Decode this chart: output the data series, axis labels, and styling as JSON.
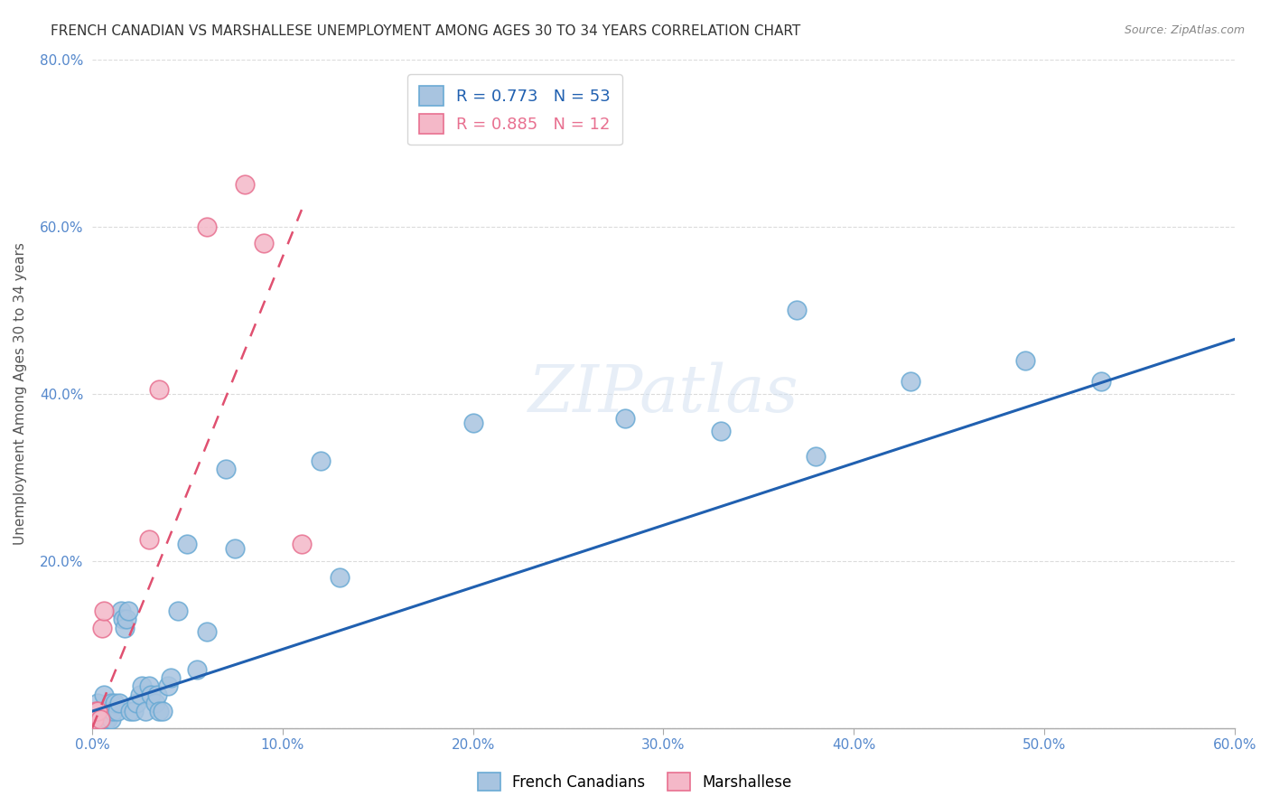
{
  "title": "FRENCH CANADIAN VS MARSHALLESE UNEMPLOYMENT AMONG AGES 30 TO 34 YEARS CORRELATION CHART",
  "source": "Source: ZipAtlas.com",
  "ylabel": "Unemployment Among Ages 30 to 34 years",
  "xlim": [
    0.0,
    0.6
  ],
  "ylim": [
    0.0,
    0.8
  ],
  "xticks": [
    0.0,
    0.1,
    0.2,
    0.3,
    0.4,
    0.5,
    0.6
  ],
  "yticks": [
    0.0,
    0.2,
    0.4,
    0.6,
    0.8
  ],
  "xticklabels": [
    "0.0%",
    "10.0%",
    "20.0%",
    "30.0%",
    "40.0%",
    "50.0%",
    "60.0%"
  ],
  "yticklabels": [
    "",
    "20.0%",
    "40.0%",
    "60.0%",
    "80.0%"
  ],
  "fc_color": "#a8c4e0",
  "fc_edge_color": "#6aaad4",
  "marsh_color": "#f4b8c8",
  "marsh_edge_color": "#e87090",
  "trendline_fc_color": "#2060b0",
  "trendline_marsh_color": "#e05070",
  "legend_R_fc": "R = 0.773",
  "legend_N_fc": "N = 53",
  "legend_R_marsh": "R = 0.885",
  "legend_N_marsh": "N = 12",
  "watermark": "ZIPatlas",
  "fc_x": [
    0.001,
    0.002,
    0.003,
    0.003,
    0.004,
    0.005,
    0.005,
    0.006,
    0.007,
    0.008,
    0.008,
    0.009,
    0.01,
    0.01,
    0.011,
    0.012,
    0.013,
    0.014,
    0.015,
    0.016,
    0.017,
    0.018,
    0.019,
    0.02,
    0.022,
    0.023,
    0.025,
    0.026,
    0.028,
    0.03,
    0.031,
    0.033,
    0.034,
    0.035,
    0.037,
    0.04,
    0.041,
    0.045,
    0.05,
    0.055,
    0.06,
    0.07,
    0.075,
    0.12,
    0.13,
    0.2,
    0.28,
    0.33,
    0.37,
    0.38,
    0.43,
    0.49,
    0.53
  ],
  "fc_y": [
    0.01,
    0.02,
    0.01,
    0.03,
    0.02,
    0.01,
    0.02,
    0.04,
    0.01,
    0.02,
    0.01,
    0.02,
    0.03,
    0.01,
    0.02,
    0.03,
    0.02,
    0.03,
    0.14,
    0.13,
    0.12,
    0.13,
    0.14,
    0.02,
    0.02,
    0.03,
    0.04,
    0.05,
    0.02,
    0.05,
    0.04,
    0.03,
    0.04,
    0.02,
    0.02,
    0.05,
    0.06,
    0.14,
    0.22,
    0.07,
    0.115,
    0.31,
    0.215,
    0.32,
    0.18,
    0.365,
    0.37,
    0.355,
    0.5,
    0.325,
    0.415,
    0.44,
    0.415
  ],
  "marsh_x": [
    0.001,
    0.002,
    0.003,
    0.004,
    0.005,
    0.006,
    0.03,
    0.035,
    0.06,
    0.08,
    0.09,
    0.11
  ],
  "marsh_y": [
    0.01,
    0.02,
    0.02,
    0.01,
    0.12,
    0.14,
    0.225,
    0.405,
    0.6,
    0.65,
    0.58,
    0.22
  ],
  "fc_trendline_x": [
    0.0,
    0.6
  ],
  "fc_trendline_y": [
    0.02,
    0.465
  ],
  "marsh_trendline_x": [
    0.0,
    0.11
  ],
  "marsh_trendline_y": [
    0.0,
    0.62
  ]
}
